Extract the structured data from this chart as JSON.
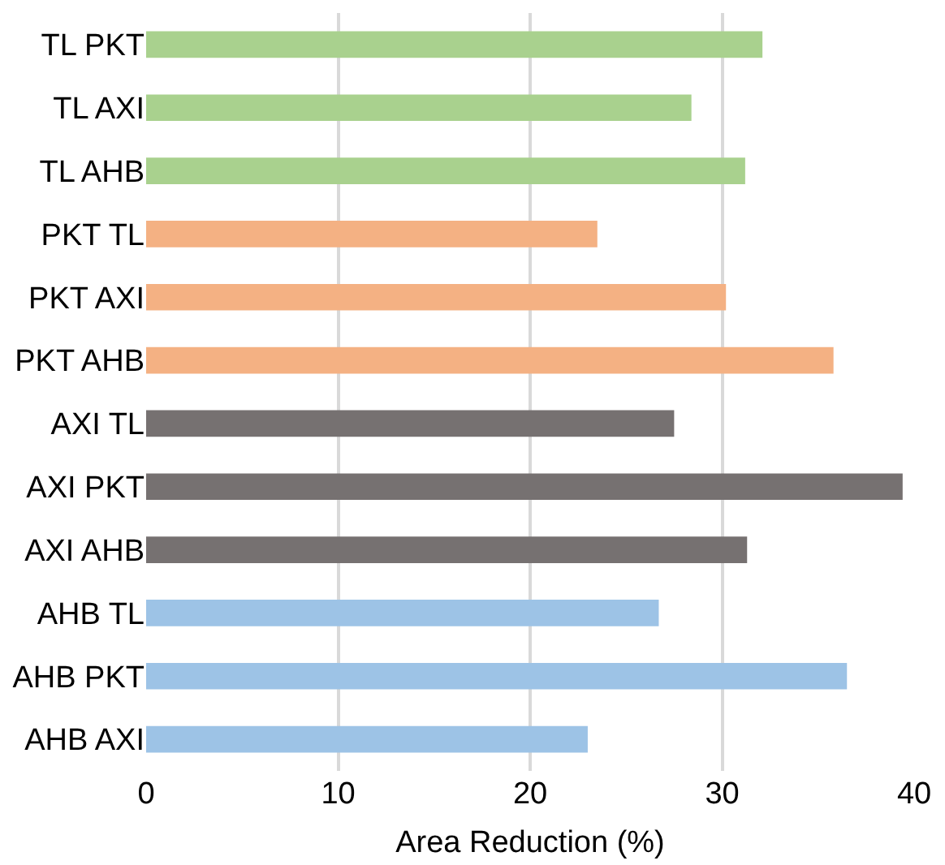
{
  "chart_data": {
    "type": "bar",
    "orientation": "horizontal",
    "xlabel": "Area Reduction (%)",
    "categories": [
      "TL PKT",
      "TL AXI",
      "TL AHB",
      "PKT TL",
      "PKT AXI",
      "PKT AHB",
      "AXI TL",
      "AXI PKT",
      "AXI AHB",
      "AHB TL",
      "AHB PKT",
      "AHB AXI"
    ],
    "values": [
      32.1,
      28.4,
      31.2,
      23.5,
      30.2,
      35.8,
      27.5,
      39.4,
      31.3,
      26.7,
      36.5,
      23.0
    ],
    "colors": [
      "#a9d18e",
      "#a9d18e",
      "#a9d18e",
      "#f4b183",
      "#f4b183",
      "#f4b183",
      "#767171",
      "#767171",
      "#767171",
      "#9dc3e6",
      "#9dc3e6",
      "#9dc3e6"
    ],
    "xlim": [
      0,
      40
    ],
    "xticks": [
      0,
      10,
      20,
      30,
      40
    ],
    "grid": "x"
  }
}
